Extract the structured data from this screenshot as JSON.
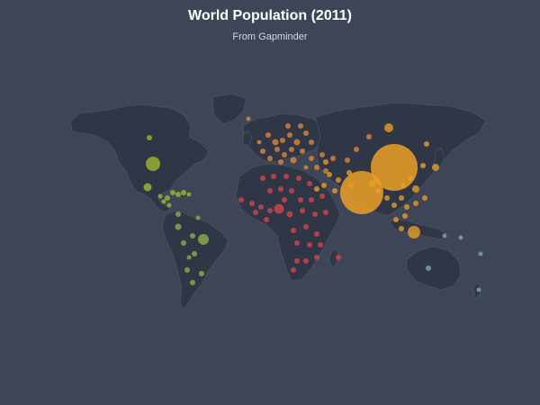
{
  "header": {
    "title": "World Population (2011)",
    "subtitle": "From Gapminder"
  },
  "colors": {
    "background": "#3d4556",
    "land": "#2f3645",
    "border": "#4a5263",
    "north_america": "#a4b82e",
    "south_america": "#8fb24a",
    "europe": "#e0883a",
    "africa": "#d8444c",
    "asia": "#eba026",
    "oceania": "#7ea6b9"
  },
  "chart_data": {
    "type": "bubble-map",
    "year": 2011,
    "size_field": "population",
    "color_field": "region",
    "legend": "none"
  }
}
